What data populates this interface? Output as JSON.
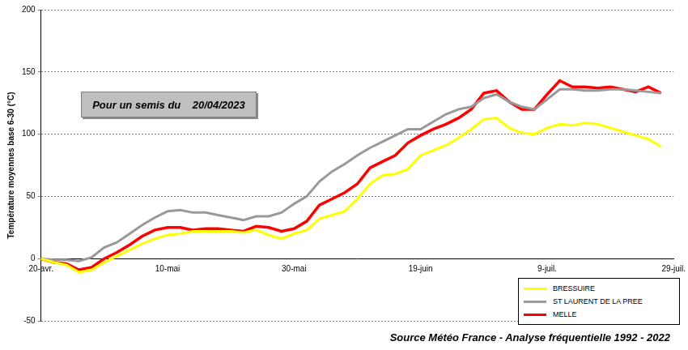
{
  "chart_data": {
    "type": "line",
    "y_label": "Température moyennes base 6-30 (°C)",
    "annotations": [
      "Pour un semis du    20/04/2023",
      "Source Météo France - Analyse fréquentielle 1992 - 2022"
    ],
    "categories": [
      "20-avr.",
      null,
      null,
      null,
      null,
      null,
      null,
      null,
      null,
      null,
      "10-mai",
      null,
      null,
      null,
      null,
      null,
      null,
      null,
      null,
      null,
      "30-mai",
      null,
      null,
      null,
      null,
      null,
      null,
      null,
      null,
      null,
      "19-juin",
      null,
      null,
      null,
      null,
      null,
      null,
      null,
      null,
      null,
      "9-juil.",
      null,
      null,
      null,
      null,
      null,
      null,
      null,
      null,
      null,
      "29-juil."
    ],
    "series": [
      {
        "name": "BRESSUIRE",
        "color": "#ffff00",
        "marker": "none",
        "line_style": "solid",
        "values": [
          0,
          -3,
          -5,
          -11,
          -9,
          -3,
          2,
          7,
          12,
          16,
          19,
          20,
          22,
          22,
          22,
          22,
          21,
          23,
          19,
          16,
          20,
          23,
          32,
          35,
          38,
          48,
          60,
          67,
          68,
          72,
          83,
          87,
          91,
          97,
          104,
          112,
          113,
          105,
          101,
          100,
          105,
          108,
          107,
          109,
          108,
          105,
          102,
          99,
          96,
          90,
          null
        ]
      },
      {
        "name": "ST LAURENT DE LA PREE",
        "color": "#999999",
        "marker": "none",
        "line_style": "solid",
        "values": [
          0,
          -1,
          -1,
          -2,
          1,
          9,
          13,
          20,
          27,
          33,
          38,
          39,
          37,
          37,
          35,
          33,
          31,
          34,
          34,
          37,
          44,
          50,
          62,
          70,
          76,
          83,
          89,
          94,
          99,
          104,
          104,
          110,
          116,
          120,
          122,
          129,
          132,
          126,
          122,
          120,
          128,
          136,
          136,
          135,
          135,
          136,
          136,
          135,
          134,
          133,
          null
        ]
      },
      {
        "name": "MELLE",
        "color": "#ff0000",
        "marker": "none",
        "line_style": "solid",
        "values": [
          0,
          -3,
          -4,
          -9,
          -7,
          0,
          5,
          11,
          18,
          23,
          25,
          25,
          23,
          24,
          24,
          23,
          22,
          26,
          25,
          22,
          24,
          30,
          43,
          48,
          53,
          60,
          73,
          78,
          83,
          93,
          99,
          104,
          108,
          113,
          120,
          133,
          135,
          126,
          120,
          120,
          132,
          143,
          138,
          138,
          137,
          138,
          136,
          134,
          138,
          133,
          null
        ]
      }
    ],
    "ylim": [
      -50,
      200
    ],
    "yticks": [
      -50,
      0,
      50,
      100,
      150,
      200
    ],
    "grid": true,
    "legend": "bottom-right"
  }
}
